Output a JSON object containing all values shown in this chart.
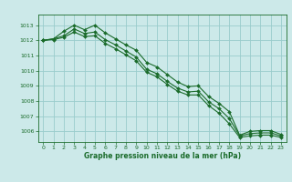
{
  "xlabel": "Graphe pression niveau de la mer (hPa)",
  "background_color": "#cce9e9",
  "grid_color": "#99cccc",
  "line_color": "#1a6b2a",
  "xlim": [
    -0.5,
    23.5
  ],
  "ylim": [
    1005.3,
    1013.7
  ],
  "yticks": [
    1006,
    1007,
    1008,
    1009,
    1010,
    1011,
    1012,
    1013
  ],
  "xticks": [
    0,
    1,
    2,
    3,
    4,
    5,
    6,
    7,
    8,
    9,
    10,
    11,
    12,
    13,
    14,
    15,
    16,
    17,
    18,
    19,
    20,
    21,
    22,
    23
  ],
  "series": [
    [
      1012.0,
      1012.1,
      1012.6,
      1013.0,
      1012.7,
      1013.0,
      1012.5,
      1012.1,
      1011.7,
      1011.35,
      1010.55,
      1010.25,
      1009.75,
      1009.25,
      1008.95,
      1009.0,
      1008.3,
      1007.85,
      1007.3,
      1005.75,
      1006.0,
      1006.05,
      1006.05,
      1005.8
    ],
    [
      1012.0,
      1012.1,
      1012.3,
      1012.75,
      1012.45,
      1012.55,
      1012.05,
      1011.7,
      1011.3,
      1010.9,
      1010.1,
      1009.8,
      1009.3,
      1008.85,
      1008.6,
      1008.65,
      1007.95,
      1007.5,
      1006.85,
      1005.7,
      1005.85,
      1005.9,
      1005.9,
      1005.7
    ],
    [
      1012.0,
      1012.05,
      1012.2,
      1012.55,
      1012.25,
      1012.3,
      1011.8,
      1011.45,
      1011.05,
      1010.65,
      1009.9,
      1009.6,
      1009.1,
      1008.65,
      1008.4,
      1008.4,
      1007.7,
      1007.2,
      1006.5,
      1005.6,
      1005.7,
      1005.75,
      1005.75,
      1005.6
    ]
  ]
}
